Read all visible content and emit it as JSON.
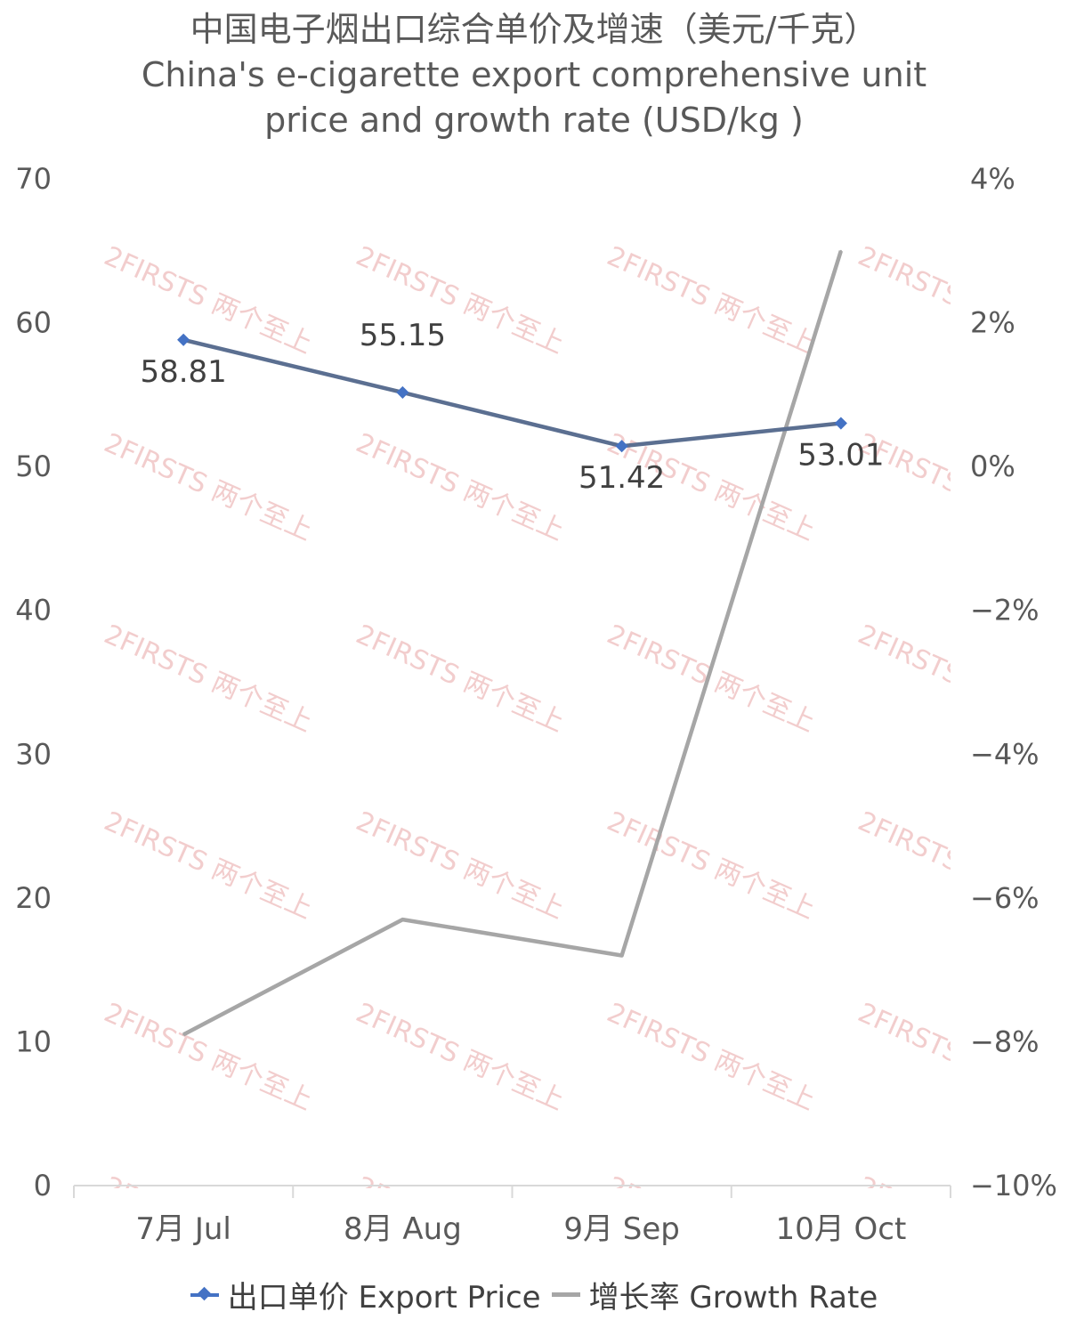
{
  "chart_data": {
    "type": "line",
    "title_lines": [
      "中国电子烟出口综合单价及增速（美元/千克）",
      "China's e-cigarette export comprehensive unit",
      "price and growth rate (USD/kg )"
    ],
    "categories": [
      "7月 Jul",
      "8月 Aug",
      "9月 Sep",
      "10月 Oct"
    ],
    "series": [
      {
        "name": "出口单价 Export Price",
        "axis": "left",
        "values": [
          58.81,
          55.15,
          51.42,
          53.01
        ],
        "data_labels": [
          "58.81",
          "55.15",
          "51.42",
          "53.01"
        ],
        "color": "#5b6f91",
        "marker_color": "#4472c4"
      },
      {
        "name": "增长率 Growth Rate",
        "axis": "right",
        "values": [
          -7.9,
          -6.3,
          -6.8,
          3.0
        ],
        "color": "#a6a6a6"
      }
    ],
    "y_left": {
      "range": [
        0,
        70
      ],
      "ticks": [
        "0",
        "10",
        "20",
        "30",
        "40",
        "50",
        "60",
        "70"
      ]
    },
    "y_right": {
      "range": [
        -10,
        4
      ],
      "ticks": [
        "−10%",
        "−8%",
        "−6%",
        "−4%",
        "−2%",
        "0%",
        "2%",
        "4%"
      ]
    },
    "grid": false,
    "legend_position": "bottom",
    "watermark": "2FIRSTS 两个至上"
  }
}
